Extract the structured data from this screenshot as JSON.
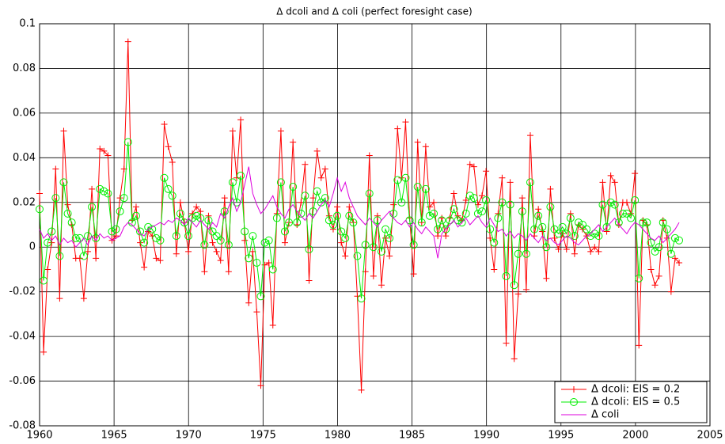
{
  "chart_data": {
    "type": "line",
    "title": "Δ dcoli and Δ coli (perfect foresight case)",
    "x": [
      1960,
      1960.27,
      1960.54,
      1960.81,
      1961.08,
      1961.35,
      1961.62,
      1961.89,
      1962.16,
      1962.43,
      1962.7,
      1962.97,
      1963.24,
      1963.51,
      1963.78,
      1964.05,
      1964.32,
      1964.59,
      1964.86,
      1965.13,
      1965.4,
      1965.67,
      1965.94,
      1966.21,
      1966.48,
      1966.75,
      1967.02,
      1967.29,
      1967.56,
      1967.83,
      1968.1,
      1968.37,
      1968.64,
      1968.91,
      1969.18,
      1969.45,
      1969.72,
      1969.99,
      1970.26,
      1970.53,
      1970.8,
      1971.07,
      1971.34,
      1971.61,
      1971.88,
      1972.15,
      1972.42,
      1972.69,
      1972.96,
      1973.23,
      1973.5,
      1973.77,
      1974.04,
      1974.31,
      1974.58,
      1974.85,
      1975.12,
      1975.39,
      1975.66,
      1975.93,
      1976.2,
      1976.47,
      1976.74,
      1977.01,
      1977.28,
      1977.55,
      1977.82,
      1978.09,
      1978.36,
      1978.63,
      1978.9,
      1979.17,
      1979.44,
      1979.71,
      1979.98,
      1980.25,
      1980.52,
      1980.79,
      1981.06,
      1981.33,
      1981.6,
      1981.87,
      1982.14,
      1982.41,
      1982.68,
      1982.95,
      1983.22,
      1983.49,
      1983.76,
      1984.03,
      1984.3,
      1984.57,
      1984.84,
      1985.11,
      1985.38,
      1985.65,
      1985.92,
      1986.19,
      1986.46,
      1986.73,
      1987,
      1987.27,
      1987.54,
      1987.81,
      1988.08,
      1988.35,
      1988.62,
      1988.89,
      1989.16,
      1989.43,
      1989.7,
      1989.97,
      1990.24,
      1990.51,
      1990.78,
      1991.05,
      1991.32,
      1991.59,
      1991.86,
      1992.13,
      1992.4,
      1992.67,
      1992.94,
      1993.21,
      1993.48,
      1993.75,
      1994.02,
      1994.29,
      1994.56,
      1994.83,
      1995.1,
      1995.37,
      1995.64,
      1995.91,
      1996.18,
      1996.45,
      1996.72,
      1996.99,
      1997.26,
      1997.53,
      1997.8,
      1998.07,
      1998.34,
      1998.61,
      1998.88,
      1999.15,
      1999.42,
      1999.69,
      1999.96,
      2000.23,
      2000.5,
      2000.77,
      2001.04,
      2001.31,
      2001.58,
      2001.85,
      2002.12,
      2002.39,
      2002.66,
      2002.93
    ],
    "series": [
      {
        "name": "Δ dcoli: EIS = 0.2",
        "color": "#ff0000",
        "marker": "+",
        "values": [
          0.024,
          -0.047,
          -0.01,
          0.002,
          0.035,
          -0.023,
          0.052,
          0.019,
          0.01,
          -0.005,
          -0.005,
          -0.023,
          -0.002,
          0.026,
          -0.005,
          0.044,
          0.043,
          0.041,
          0.003,
          0.005,
          0.022,
          0.035,
          0.092,
          0.012,
          0.018,
          0.002,
          -0.009,
          0.007,
          0.005,
          -0.005,
          -0.006,
          0.055,
          0.045,
          0.038,
          -0.003,
          0.02,
          0.011,
          -0.002,
          0.015,
          0.018,
          0.016,
          -0.011,
          0.014,
          0.002,
          -0.002,
          -0.006,
          0.022,
          -0.011,
          0.052,
          0.031,
          0.057,
          0.003,
          -0.025,
          -0.002,
          -0.029,
          -0.062,
          -0.008,
          -0.007,
          -0.035,
          0.015,
          0.052,
          0.002,
          0.011,
          0.047,
          0.01,
          0.02,
          0.037,
          -0.015,
          0.022,
          0.043,
          0.031,
          0.035,
          0.014,
          0.008,
          0.018,
          0.002,
          -0.004,
          0.018,
          0.011,
          -0.022,
          -0.064,
          -0.011,
          0.041,
          -0.013,
          0.014,
          -0.017,
          0.004,
          -0.004,
          0.019,
          0.053,
          0.031,
          0.056,
          0.013,
          -0.012,
          0.047,
          0.011,
          0.045,
          0.018,
          0.02,
          0.005,
          0.013,
          0.005,
          0.013,
          0.024,
          0.014,
          0.012,
          0.021,
          0.037,
          0.036,
          0.019,
          0.023,
          0.034,
          0.004,
          -0.01,
          0.015,
          0.031,
          -0.043,
          0.029,
          -0.05,
          -0.021,
          0.022,
          -0.019,
          0.05,
          0.005,
          0.017,
          0.007,
          -0.014,
          0.026,
          0.004,
          -0.001,
          0.006,
          -0.001,
          0.015,
          -0.003,
          0.01,
          0.008,
          0.005,
          -0.002,
          0.0,
          -0.002,
          0.029,
          0.007,
          0.032,
          0.029,
          0.01,
          0.02,
          0.02,
          0.015,
          0.033,
          -0.044,
          0.012,
          0.01,
          -0.01,
          -0.017,
          -0.013,
          0.012,
          0.004,
          -0.02,
          -0.005,
          -0.007
        ]
      },
      {
        "name": "Δ dcoli: EIS = 0.5",
        "color": "#00ee00",
        "marker": "o",
        "values": [
          0.017,
          -0.015,
          0.002,
          0.007,
          0.022,
          -0.004,
          0.029,
          0.015,
          0.011,
          0.004,
          0.004,
          -0.004,
          0.005,
          0.018,
          0.004,
          0.026,
          0.025,
          0.024,
          0.007,
          0.008,
          0.016,
          0.022,
          0.047,
          0.011,
          0.014,
          0.007,
          0.002,
          0.009,
          0.008,
          0.004,
          0.003,
          0.031,
          0.026,
          0.023,
          0.005,
          0.015,
          0.011,
          0.005,
          0.013,
          0.014,
          0.013,
          0.001,
          0.012,
          0.007,
          0.005,
          0.003,
          0.016,
          0.001,
          0.029,
          0.02,
          0.032,
          0.007,
          -0.005,
          0.005,
          -0.007,
          -0.022,
          0.002,
          0.003,
          -0.01,
          0.013,
          0.029,
          0.007,
          0.011,
          0.027,
          0.011,
          0.015,
          0.023,
          -0.001,
          0.016,
          0.025,
          0.02,
          0.022,
          0.012,
          0.01,
          0.014,
          0.007,
          0.004,
          0.014,
          0.011,
          -0.004,
          -0.023,
          0.001,
          0.024,
          0.0,
          0.012,
          -0.002,
          0.008,
          0.004,
          0.015,
          0.03,
          0.02,
          0.031,
          0.012,
          0.001,
          0.027,
          0.011,
          0.026,
          0.014,
          0.015,
          0.008,
          0.012,
          0.008,
          0.012,
          0.017,
          0.012,
          0.011,
          0.015,
          0.023,
          0.022,
          0.015,
          0.016,
          0.021,
          0.008,
          0.002,
          0.013,
          0.02,
          -0.013,
          0.019,
          -0.017,
          -0.003,
          0.016,
          -0.003,
          0.029,
          0.008,
          0.014,
          0.009,
          0.0,
          0.018,
          0.008,
          0.006,
          0.009,
          0.006,
          0.013,
          0.005,
          0.011,
          0.01,
          0.008,
          0.005,
          0.006,
          0.005,
          0.019,
          0.009,
          0.02,
          0.019,
          0.011,
          0.015,
          0.015,
          0.013,
          0.021,
          -0.014,
          0.011,
          0.011,
          0.002,
          -0.002,
          0.0,
          0.011,
          0.008,
          -0.003,
          0.004,
          0.003
        ]
      },
      {
        "name": "Δ coli",
        "color": "#dd00dd",
        "values": [
          0.008,
          0.004,
          0.006,
          0.003,
          0.005,
          0.001,
          0.004,
          0.002,
          0.003,
          0.0,
          0.002,
          0.004,
          0.001,
          0.005,
          0.003,
          0.006,
          0.004,
          0.005,
          0.003,
          0.004,
          0.005,
          0.009,
          0.011,
          0.01,
          0.008,
          0.006,
          0.005,
          0.008,
          0.009,
          0.01,
          0.011,
          0.01,
          0.012,
          0.011,
          0.013,
          0.012,
          0.01,
          0.013,
          0.011,
          0.009,
          0.012,
          0.01,
          0.008,
          0.011,
          0.009,
          0.015,
          0.013,
          0.018,
          0.022,
          0.016,
          0.02,
          0.028,
          0.036,
          0.024,
          0.019,
          0.015,
          0.017,
          0.02,
          0.023,
          0.018,
          0.015,
          0.013,
          0.017,
          0.019,
          0.016,
          0.014,
          0.012,
          0.015,
          0.013,
          0.016,
          0.019,
          0.021,
          0.018,
          0.024,
          0.031,
          0.025,
          0.029,
          0.022,
          0.018,
          0.014,
          0.012,
          0.01,
          0.013,
          0.011,
          0.009,
          0.012,
          0.014,
          0.016,
          0.013,
          0.011,
          0.01,
          0.012,
          0.009,
          0.011,
          0.008,
          0.006,
          0.009,
          0.007,
          0.005,
          -0.005,
          0.006,
          0.008,
          0.01,
          0.012,
          0.009,
          0.011,
          0.013,
          0.01,
          0.012,
          0.014,
          0.011,
          0.009,
          0.013,
          0.01,
          0.007,
          0.008,
          0.005,
          0.007,
          0.004,
          0.006,
          0.005,
          0.003,
          0.006,
          0.004,
          0.002,
          0.005,
          0.003,
          0.004,
          0.002,
          0.001,
          0.003,
          0.005,
          0.004,
          0.002,
          0.001,
          0.003,
          0.005,
          0.006,
          0.008,
          0.01,
          0.007,
          0.009,
          0.011,
          0.013,
          0.01,
          0.008,
          0.006,
          0.009,
          0.011,
          0.01,
          0.008,
          0.006,
          0.004,
          0.003,
          0.005,
          0.002,
          0.004,
          0.006,
          0.008,
          0.011
        ]
      }
    ],
    "xlim": [
      1960,
      2005
    ],
    "xticks": [
      1960,
      1965,
      1970,
      1975,
      1980,
      1985,
      1990,
      1995,
      2000,
      2005
    ],
    "ylim": [
      -0.08,
      0.1
    ],
    "yticks": [
      -0.08,
      -0.06,
      -0.04,
      -0.02,
      0,
      0.02,
      0.04,
      0.06,
      0.08,
      0.1
    ],
    "grid": true,
    "legend": "lower right"
  }
}
